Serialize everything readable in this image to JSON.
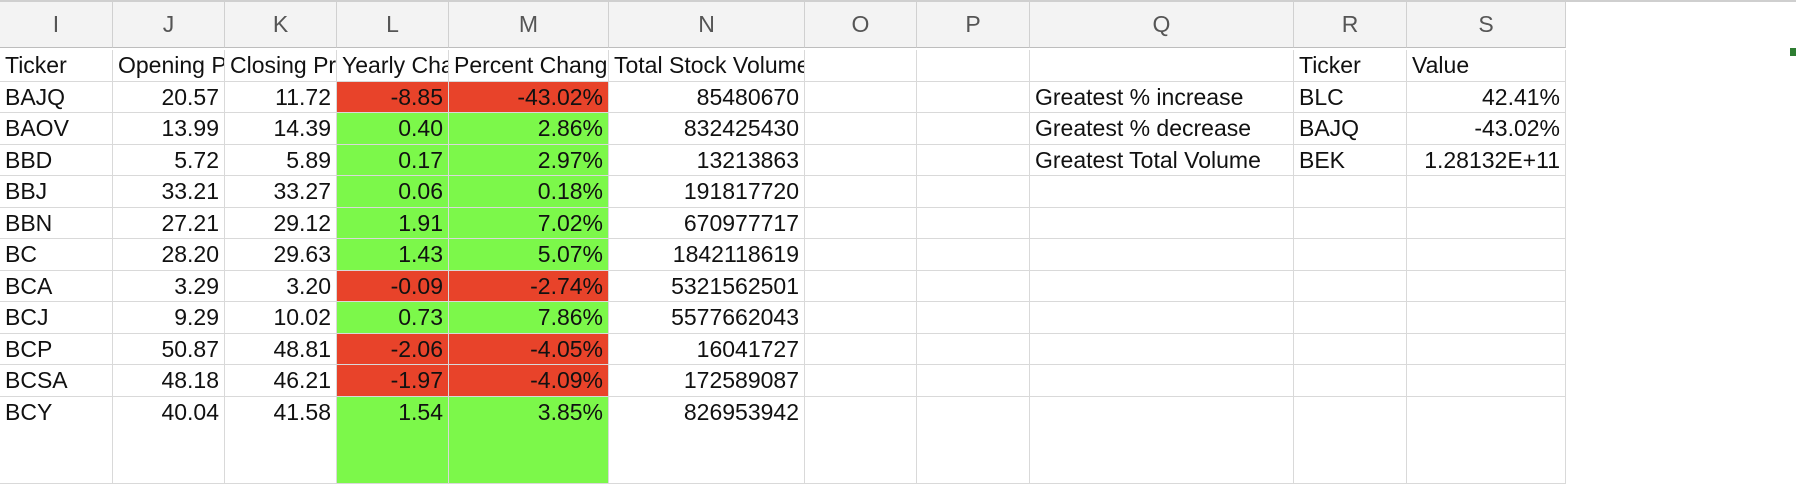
{
  "columns": [
    "I",
    "J",
    "K",
    "L",
    "M",
    "N",
    "O",
    "P",
    "Q",
    "R",
    "S"
  ],
  "headers": [
    "Ticker",
    "Opening Pr",
    "Closing Pric",
    "Yearly Chan",
    "Percent Change",
    "Total Stock Volume"
  ],
  "rows": [
    {
      "ticker": "BAJQ",
      "open": "20.57",
      "close": "11.72",
      "change": "-8.85",
      "pct": "-43.02%",
      "volume": "85480670",
      "status": "negative"
    },
    {
      "ticker": "BAOV",
      "open": "13.99",
      "close": "14.39",
      "change": "0.40",
      "pct": "2.86%",
      "volume": "832425430",
      "status": "positive"
    },
    {
      "ticker": "BBD",
      "open": "5.72",
      "close": "5.89",
      "change": "0.17",
      "pct": "2.97%",
      "volume": "13213863",
      "status": "positive"
    },
    {
      "ticker": "BBJ",
      "open": "33.21",
      "close": "33.27",
      "change": "0.06",
      "pct": "0.18%",
      "volume": "191817720",
      "status": "positive"
    },
    {
      "ticker": "BBN",
      "open": "27.21",
      "close": "29.12",
      "change": "1.91",
      "pct": "7.02%",
      "volume": "670977717",
      "status": "positive"
    },
    {
      "ticker": "BC",
      "open": "28.20",
      "close": "29.63",
      "change": "1.43",
      "pct": "5.07%",
      "volume": "1842118619",
      "status": "positive"
    },
    {
      "ticker": "BCA",
      "open": "3.29",
      "close": "3.20",
      "change": "-0.09",
      "pct": "-2.74%",
      "volume": "5321562501",
      "status": "negative"
    },
    {
      "ticker": "BCJ",
      "open": "9.29",
      "close": "10.02",
      "change": "0.73",
      "pct": "7.86%",
      "volume": "5577662043",
      "status": "positive"
    },
    {
      "ticker": "BCP",
      "open": "50.87",
      "close": "48.81",
      "change": "-2.06",
      "pct": "-4.05%",
      "volume": "16041727",
      "status": "negative"
    },
    {
      "ticker": "BCSA",
      "open": "48.18",
      "close": "46.21",
      "change": "-1.97",
      "pct": "-4.09%",
      "volume": "172589087",
      "status": "negative"
    },
    {
      "ticker": "BCY",
      "open": "40.04",
      "close": "41.58",
      "change": "1.54",
      "pct": "3.85%",
      "volume": "826953942",
      "status": "positive"
    }
  ],
  "summary": {
    "headers": [
      "Ticker",
      "Value"
    ],
    "rows": [
      {
        "label": "Greatest % increase",
        "ticker": "BLC",
        "value": "42.41%"
      },
      {
        "label": "Greatest % decrease",
        "ticker": "BAJQ",
        "value": "-43.02%"
      },
      {
        "label": "Greatest Total Volume",
        "ticker": "BEK",
        "value": "1.28132E+11"
      }
    ]
  },
  "colors": {
    "positive": "#7cf84a",
    "negative": "#e8432a"
  }
}
